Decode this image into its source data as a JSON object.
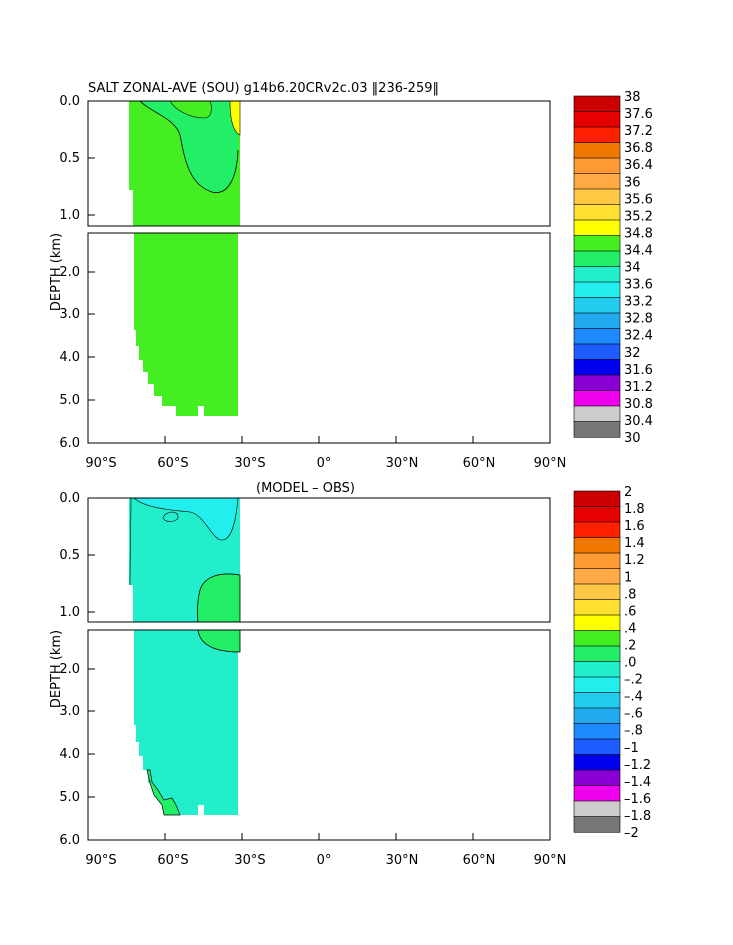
{
  "chart_data": [
    {
      "type": "heatmap",
      "title": "SALT ZONAL-AVE (SOU) g14b6.20CRv2c.03 ‖236-259‖",
      "ylabel": "DEPTH (km)",
      "xlabel": "",
      "x_ticks": [
        "90°S",
        "60°S",
        "30°S",
        "0°",
        "30°N",
        "60°N",
        "90°N"
      ],
      "upper_y_ticks": [
        "0.0",
        "0.5",
        "1.0"
      ],
      "lower_y_ticks": [
        "2.0",
        "3.0",
        "4.0",
        "5.0",
        "6.0"
      ],
      "colorbar_labels": [
        "38",
        "37.6",
        "37.2",
        "36.8",
        "36.4",
        "36",
        "35.6",
        "35.2",
        "34.8",
        "34.4",
        "34",
        "33.6",
        "33.2",
        "32.8",
        "32.4",
        "32",
        "31.6",
        "31.2",
        "30.8",
        "30.4",
        "30"
      ],
      "colorbar_colors": [
        "#cc0000",
        "#e60000",
        "#ff2000",
        "#f07800",
        "#ff9933",
        "#ffaa44",
        "#ffc844",
        "#ffe030",
        "#ffff00",
        "#44ee22",
        "#22ee66",
        "#22eecc",
        "#22eeee",
        "#22ccee",
        "#22aaee",
        "#1e88ff",
        "#1e5cff",
        "#0000ee",
        "#8a00d4",
        "#ee00ee",
        "#cccccc",
        "#777777"
      ],
      "x_range": [
        -90,
        90
      ],
      "depth_range_km": [
        0,
        6
      ]
    },
    {
      "type": "heatmap",
      "title": "(MODEL – OBS)",
      "ylabel": "DEPTH (km)",
      "xlabel": "",
      "x_ticks": [
        "90°S",
        "60°S",
        "30°S",
        "0°",
        "30°N",
        "60°N",
        "90°N"
      ],
      "upper_y_ticks": [
        "0.0",
        "0.5",
        "1.0"
      ],
      "lower_y_ticks": [
        "2.0",
        "3.0",
        "4.0",
        "5.0",
        "6.0"
      ],
      "colorbar_labels": [
        "2",
        "1.8",
        "1.6",
        "1.4",
        "1.2",
        "1",
        ".8",
        ".6",
        ".4",
        ".2",
        ".0",
        "–.2",
        "–.4",
        "–.6",
        "–.8",
        "–1",
        "–1.2",
        "–1.4",
        "–1.6",
        "–1.8",
        "–2"
      ],
      "colorbar_colors": [
        "#cc0000",
        "#e60000",
        "#ff2000",
        "#f07800",
        "#ff9933",
        "#ffaa44",
        "#ffc844",
        "#ffe030",
        "#ffff00",
        "#44ee22",
        "#22ee66",
        "#22eecc",
        "#22eeee",
        "#22ccee",
        "#22aaee",
        "#1e88ff",
        "#1e5cff",
        "#0000ee",
        "#8a00d4",
        "#ee00ee",
        "#cccccc",
        "#777777"
      ],
      "x_range": [
        -90,
        90
      ],
      "depth_range_km": [
        0,
        6
      ]
    }
  ],
  "fill_colors": {
    "green": "#44ee22",
    "green_light": "#22ee66",
    "yellow": "#ffff00",
    "cyan": "#22eecc",
    "cyan_bright": "#22eeee"
  }
}
